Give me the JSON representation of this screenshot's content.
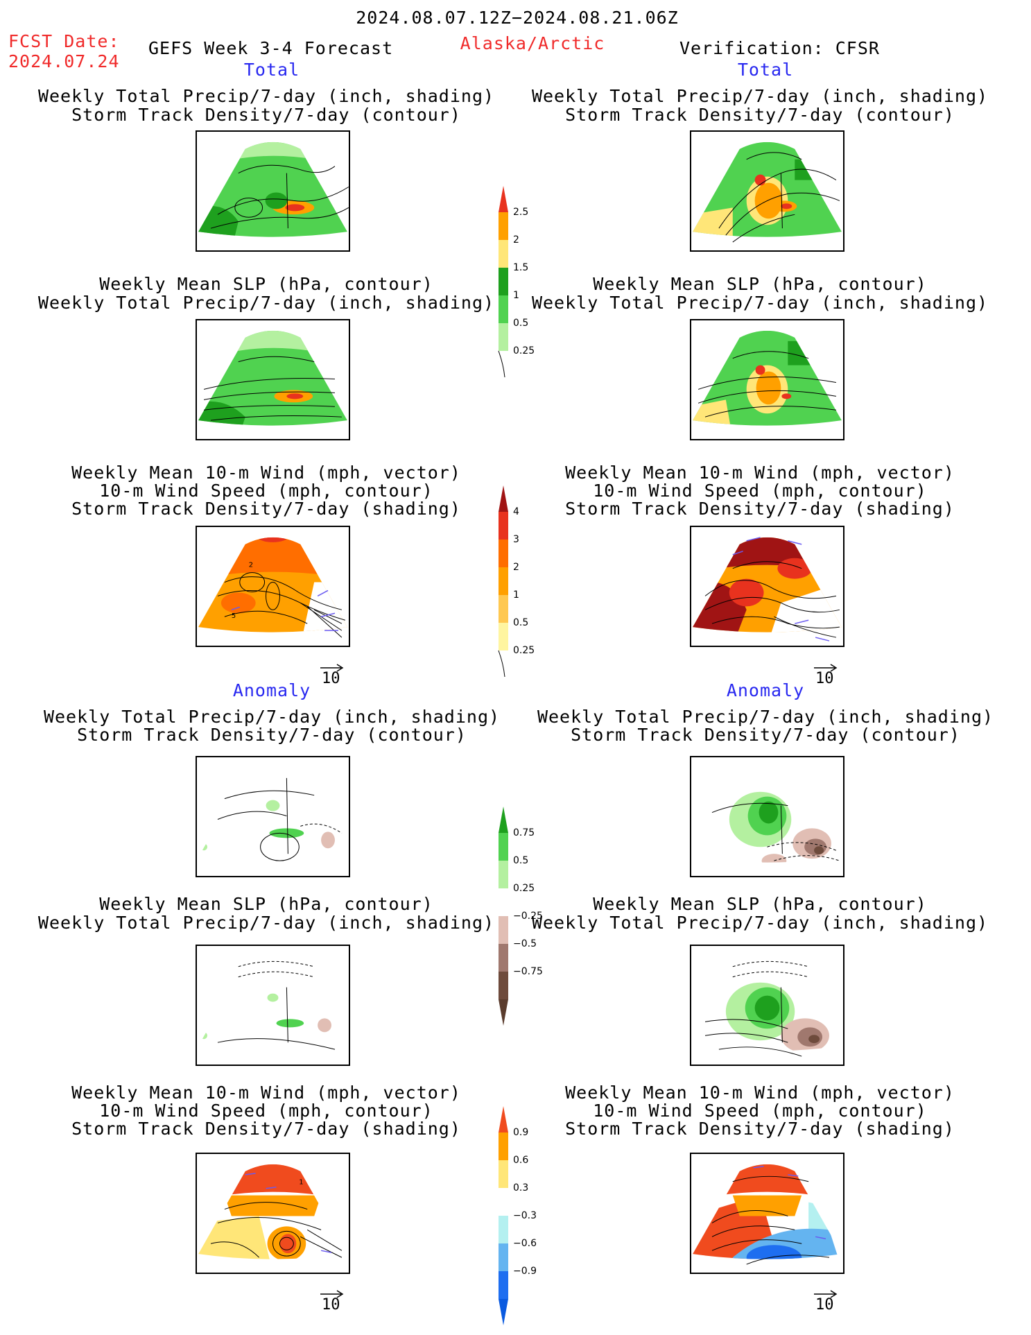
{
  "header": {
    "period": "2024.08.07.12Z−2024.08.21.06Z",
    "fcst_label": "FCST Date:",
    "fcst_date": "2024.07.24",
    "forecast_name": "GEFS Week 3-4 Forecast",
    "region": "Alaska/Arctic",
    "verification": "Verification: CFSR"
  },
  "sections": {
    "total": "Total",
    "anomaly": "Anomaly"
  },
  "titles": {
    "precip_storm": [
      "Weekly Total Precip/7-day (inch, shading)",
      "Storm Track Density/7-day (contour)"
    ],
    "slp_precip": [
      "Weekly Mean SLP (hPa, contour)",
      "Weekly Total Precip/7-day (inch, shading)"
    ],
    "wind": [
      "Weekly Mean 10-m Wind (mph, vector)",
      "10-m Wind Speed (mph, contour)",
      "Storm Track Density/7-day (shading)"
    ]
  },
  "vector_ref": "10",
  "colorbars": {
    "precip_total": {
      "labels": [
        "2.5",
        "2",
        "1.5",
        "1",
        "0.5",
        "0.25"
      ],
      "colors": [
        "#e8321e",
        "#ffa000",
        "#ffe678",
        "#1ea01e",
        "#50d250",
        "#b4f0a0"
      ]
    },
    "storm_total": {
      "labels": [
        "4",
        "3",
        "2",
        "1",
        "0.5",
        "0.25"
      ],
      "colors": [
        "#a01414",
        "#e8321e",
        "#ff6e00",
        "#ffa000",
        "#ffc850",
        "#fff5a0"
      ]
    },
    "precip_anom": {
      "labels": [
        "0.75",
        "0.5",
        "0.25",
        "−0.25",
        "−0.5",
        "−0.75"
      ],
      "colors": [
        "#1ea01e",
        "#50d250",
        "#b4f0a0",
        "#ffffff",
        "#e1beb4",
        "#a0786e",
        "#6e4b3c"
      ]
    },
    "storm_anom": {
      "labels": [
        "0.9",
        "0.6",
        "0.3",
        "−0.3",
        "−0.6",
        "−0.9"
      ],
      "colors": [
        "#f04b1e",
        "#ffa000",
        "#ffe678",
        "#ffffff",
        "#b4f0f0",
        "#64b4f0",
        "#1e6ef0"
      ]
    }
  },
  "map_labels": {
    "wind_total_fcst": [
      "2",
      "5"
    ],
    "wind_anom_fcst": [
      "1"
    ]
  },
  "colors": {
    "header_red": "#f02a2a",
    "section_blue": "#2828f0"
  }
}
